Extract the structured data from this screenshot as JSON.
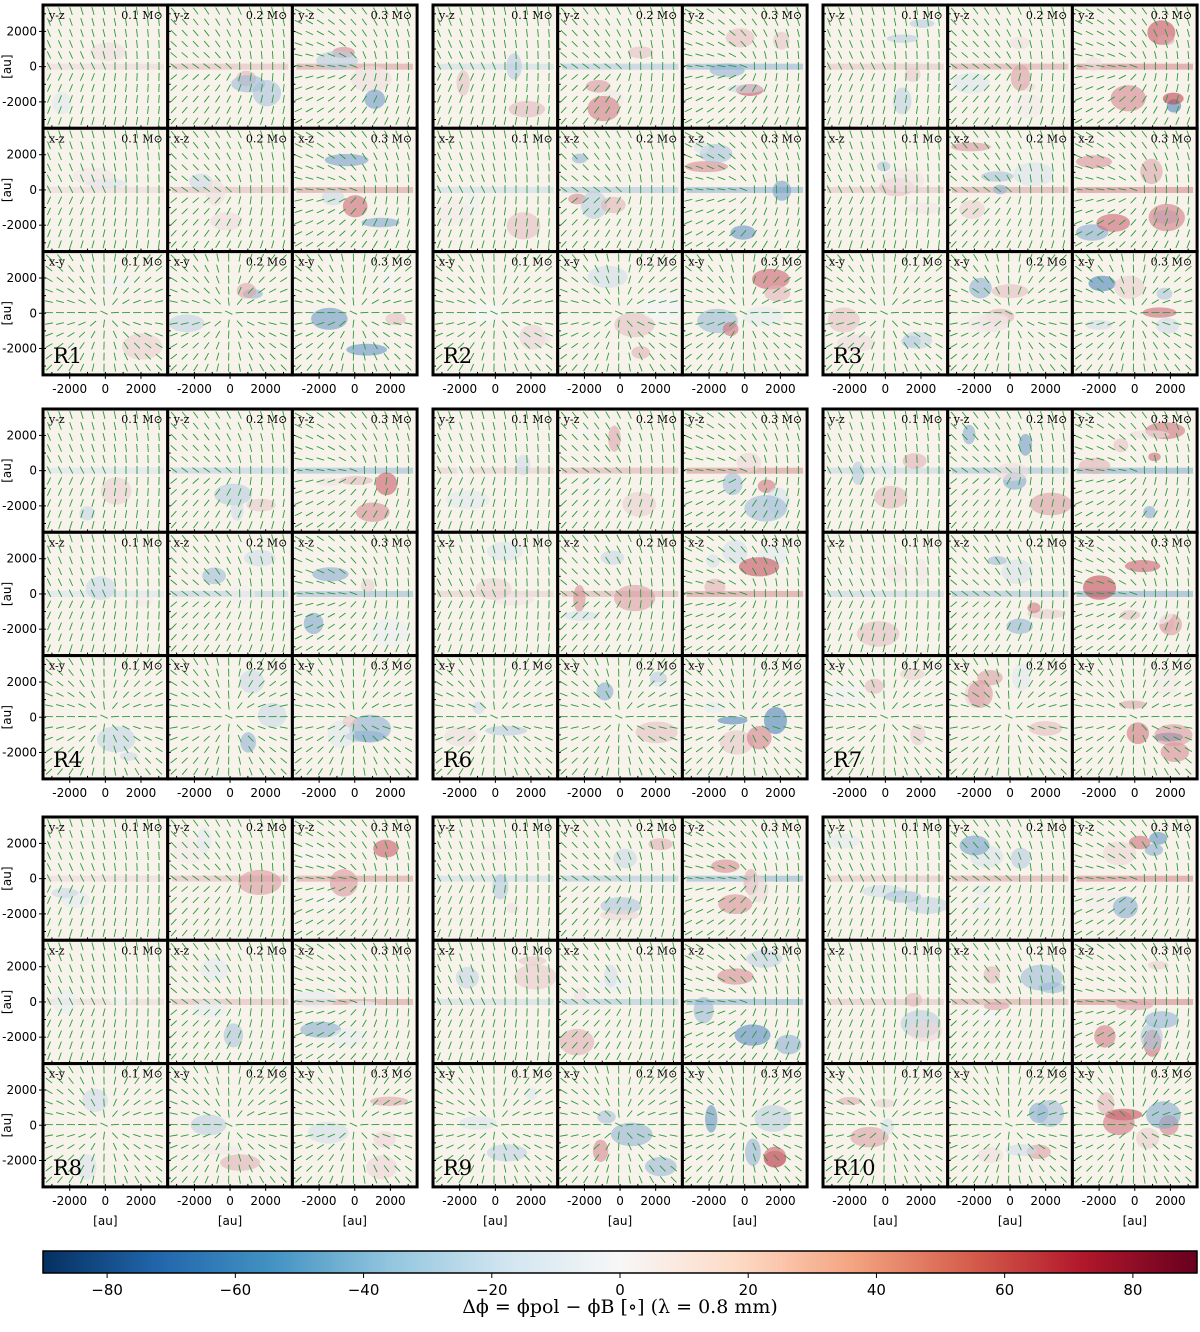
{
  "chart_data": {
    "type": "heatmap",
    "description_units": "au",
    "runs": [
      "R1",
      "R2",
      "R3",
      "R4",
      "R6",
      "R7",
      "R8",
      "R9",
      "R10"
    ],
    "rows": [
      "y-z",
      "x-z",
      "x-y"
    ],
    "masses": [
      "0.1 M⊙",
      "0.2 M⊙",
      "0.3 M⊙"
    ],
    "axis_ticks": [
      "-2000",
      "0",
      "2000"
    ],
    "axis_tick_values": [
      -2000,
      0,
      2000
    ],
    "axis_range": [
      -3500,
      3500
    ],
    "ylabel": "[au]",
    "xlabel": "[au]",
    "colorbar": {
      "label": "Δϕ = ϕpol − ϕB [∘] (λ = 0.8 mm)",
      "range": [
        -90,
        90
      ],
      "tick_values": [
        -80,
        -60,
        -40,
        -20,
        0,
        20,
        40,
        60,
        80
      ],
      "tick_labels": [
        "−80",
        "−60",
        "−40",
        "−20",
        "0",
        "20",
        "40",
        "60",
        "80"
      ],
      "colormap": "RdBu_r"
    },
    "colors": {
      "vectors": "#2a9a3c",
      "background": "#f7f3ea",
      "frame": "#000000"
    }
  }
}
